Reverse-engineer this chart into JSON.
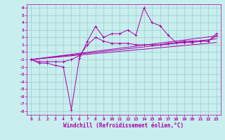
{
  "xlabel": "Windchill (Refroidissement éolien,°C)",
  "bg_color": "#c8eeee",
  "line_color": "#aa00aa",
  "grid_color": "#99cccc",
  "xlim": [
    -0.5,
    23.5
  ],
  "ylim": [
    -8.5,
    6.5
  ],
  "xticks": [
    0,
    1,
    2,
    3,
    4,
    5,
    6,
    7,
    8,
    9,
    10,
    11,
    12,
    13,
    14,
    15,
    16,
    17,
    18,
    19,
    20,
    21,
    22,
    23
  ],
  "yticks": [
    -8,
    -7,
    -6,
    -5,
    -4,
    -3,
    -2,
    -1,
    0,
    1,
    2,
    3,
    4,
    5,
    6
  ],
  "line1_x": [
    0,
    1,
    2,
    3,
    4,
    5,
    6,
    7,
    8,
    9,
    10,
    11,
    12,
    13,
    14,
    15,
    16,
    17,
    18,
    19,
    20,
    21,
    22,
    23
  ],
  "line1_y": [
    -1.0,
    -1.5,
    -1.5,
    -1.8,
    -2.0,
    -7.8,
    -0.8,
    1.5,
    3.5,
    2.0,
    2.5,
    2.5,
    3.0,
    2.3,
    6.0,
    4.0,
    3.6,
    2.3,
    1.3,
    1.5,
    1.5,
    1.5,
    1.5,
    2.5
  ],
  "line2_x": [
    0,
    1,
    2,
    3,
    4,
    5,
    6,
    7,
    8,
    9,
    10,
    11,
    12,
    13,
    14,
    15,
    16,
    17,
    18,
    19,
    20,
    21,
    22,
    23
  ],
  "line2_y": [
    -1.0,
    -1.3,
    -1.3,
    -1.3,
    -1.3,
    -1.0,
    -0.5,
    1.0,
    2.0,
    1.5,
    1.2,
    1.2,
    1.2,
    1.0,
    1.0,
    1.0,
    1.0,
    1.2,
    1.3,
    1.3,
    1.3,
    1.5,
    1.5,
    2.2
  ],
  "line3_x": [
    0,
    23
  ],
  "line3_y": [
    -1.0,
    2.2
  ],
  "line4_x": [
    0,
    23
  ],
  "line4_y": [
    -1.0,
    1.8
  ],
  "line5_x": [
    0,
    23
  ],
  "line5_y": [
    -1.0,
    1.3
  ]
}
